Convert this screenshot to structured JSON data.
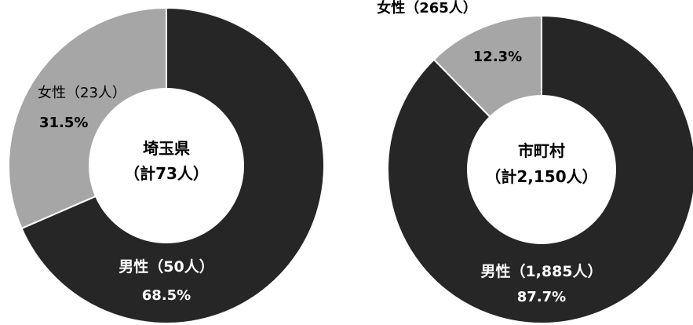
{
  "chart_data": [
    {
      "type": "pie",
      "center_label": "埼玉県",
      "center_sublabel": "（計73人）",
      "slices": [
        {
          "label": "男性（50人）",
          "value": 50,
          "percent_label": "68.5%",
          "color": "#262626"
        },
        {
          "label": "女性（23人）",
          "value": 23,
          "percent_label": "31.5%",
          "color": "#a6a6a6"
        }
      ]
    },
    {
      "type": "pie",
      "center_label": "市町村",
      "center_sublabel": "（計2,150人）",
      "slices": [
        {
          "label": "男性（1,885人）",
          "value": 1885,
          "percent_label": "87.7%",
          "color": "#262626"
        },
        {
          "label": "女性（265人）",
          "value": 265,
          "percent_label": "12.3%",
          "color": "#a6a6a6"
        }
      ]
    }
  ]
}
